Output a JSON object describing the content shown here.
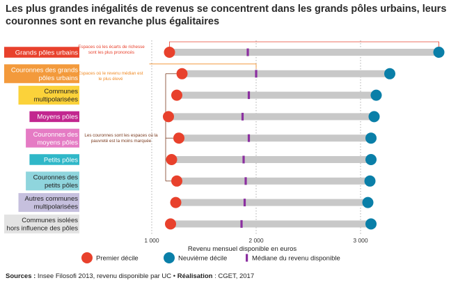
{
  "title": "Les plus grandes inégalités de revenus se concentrent dans les grands pôles urbains, leurs couronnes sont en revanche plus égalitaires",
  "source": {
    "sources_label": "Sources :",
    "sources_text": " Insee Filosofi 2013, revenu disponible par UC • ",
    "realisation_label": "Réalisation",
    "realisation_text": " : CGET, 2017"
  },
  "colors": {
    "premier": "#e8412c",
    "neuvieme": "#0a7fa8",
    "mediane": "#8b2fa0",
    "bar": "#c8c8c8",
    "annotation_red": "#e8412c",
    "annotation_orange": "#f08a24",
    "annotation_brown": "#7a3a1e"
  },
  "chart_data": {
    "type": "dumbbell",
    "xlabel": "Revenu mensuel disponible en euros",
    "xticks": [
      "1 000",
      "2 000",
      "3 000"
    ],
    "xtick_values": [
      1000,
      2000,
      3000
    ],
    "xlim": [
      700,
      3850
    ],
    "categories": [
      {
        "label": "Grands pôles urbains",
        "bg": "#e8412c",
        "fg": "#ffffff"
      },
      {
        "label": "Couronnes des grands pôles urbains",
        "bg": "#f39a3c",
        "fg": "#ffffff"
      },
      {
        "label": "Communes multipolarisées",
        "bg": "#fbd23a",
        "fg": "#222222"
      },
      {
        "label": "Moyens pôles",
        "bg": "#c2268f",
        "fg": "#ffffff"
      },
      {
        "label": "Couronnes des moyens pôles",
        "bg": "#e57bc4",
        "fg": "#ffffff"
      },
      {
        "label": "Petits pôles",
        "bg": "#2fb7c8",
        "fg": "#ffffff"
      },
      {
        "label": "Couronnes des petits pôles",
        "bg": "#8fd5dd",
        "fg": "#222222"
      },
      {
        "label": "Autres communes multipolarisées",
        "bg": "#c6c0de",
        "fg": "#222222"
      },
      {
        "label": "Communes isolées hors influence des pôles",
        "bg": "#e3e3e3",
        "fg": "#222222"
      }
    ],
    "series": [
      {
        "name": "Premier décile",
        "values": [
          1170,
          1290,
          1240,
          1160,
          1260,
          1190,
          1240,
          1230,
          1180
        ]
      },
      {
        "name": "Neuvième décile",
        "values": [
          3750,
          3280,
          3150,
          3130,
          3100,
          3100,
          3090,
          3070,
          3100
        ]
      },
      {
        "name": "Médiane du revenu disponible",
        "values": [
          1920,
          2000,
          1930,
          1870,
          1930,
          1880,
          1900,
          1890,
          1860
        ]
      }
    ],
    "annotations": [
      {
        "text": "Espaces où les écarts de richesse sont les plus prononcés",
        "color": "#e8412c"
      },
      {
        "text": "Espaces où le revenu médian est le plus élevé",
        "color": "#f08a24"
      },
      {
        "text": "Les couronnes sont les espaces où la pauvreté est la moins marquée",
        "color": "#7a3a1e"
      }
    ],
    "grid": "vertical dotted"
  }
}
